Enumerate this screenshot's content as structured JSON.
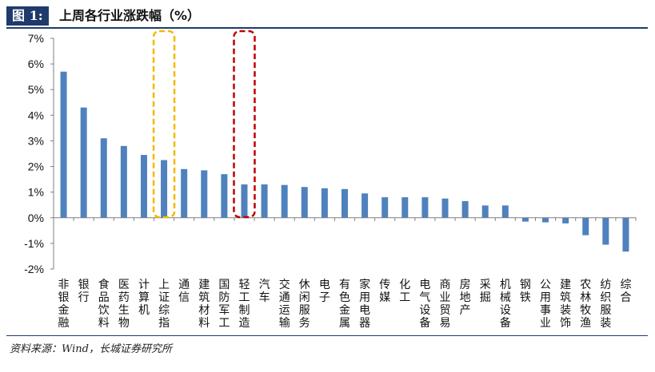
{
  "header": {
    "figure_label": "图 1:",
    "title": "上周各行业涨跌幅（%）"
  },
  "footer": {
    "source": "资料来源：Wind，长城证券研究所"
  },
  "colors": {
    "bar": "#4f81bd",
    "highlight_1": "#f5b800",
    "highlight_2": "#c00000",
    "header_bg": "#1f3b6b"
  },
  "chart_data": {
    "type": "bar",
    "title": "上周各行业涨跌幅（%）",
    "xlabel": "",
    "ylabel": "",
    "ylim": [
      -2,
      7
    ],
    "yticks": [
      "-2%",
      "-1%",
      "0%",
      "1%",
      "2%",
      "3%",
      "4%",
      "5%",
      "6%",
      "7%"
    ],
    "grid": false,
    "legend": "none",
    "categories": [
      "非银金融",
      "银行",
      "食品饮料",
      "医药生物",
      "计算机",
      "上证综指",
      "通信",
      "建筑材料",
      "国防军工",
      "轻工制造",
      "汽车",
      "交通运输",
      "休闲服务",
      "电子",
      "有色金属",
      "家用电器",
      "传媒",
      "化工",
      "电气设备",
      "商业贸易",
      "房地产",
      "采掘",
      "机械设备",
      "钢铁",
      "公用事业",
      "建筑装饰",
      "农林牧渔",
      "纺织服装",
      "综合"
    ],
    "values": [
      5.7,
      4.3,
      3.1,
      2.8,
      2.45,
      2.25,
      1.9,
      1.85,
      1.7,
      1.3,
      1.3,
      1.28,
      1.2,
      1.15,
      1.12,
      0.95,
      0.8,
      0.8,
      0.8,
      0.75,
      0.65,
      0.48,
      0.48,
      -0.15,
      -0.18,
      -0.22,
      -0.68,
      -1.05,
      -1.32
    ],
    "highlighted": [
      {
        "category": "上证综指",
        "color": "#f5b800",
        "style": "dashed-box"
      },
      {
        "category": "轻工制造",
        "color": "#c00000",
        "style": "dashed-box"
      }
    ]
  }
}
